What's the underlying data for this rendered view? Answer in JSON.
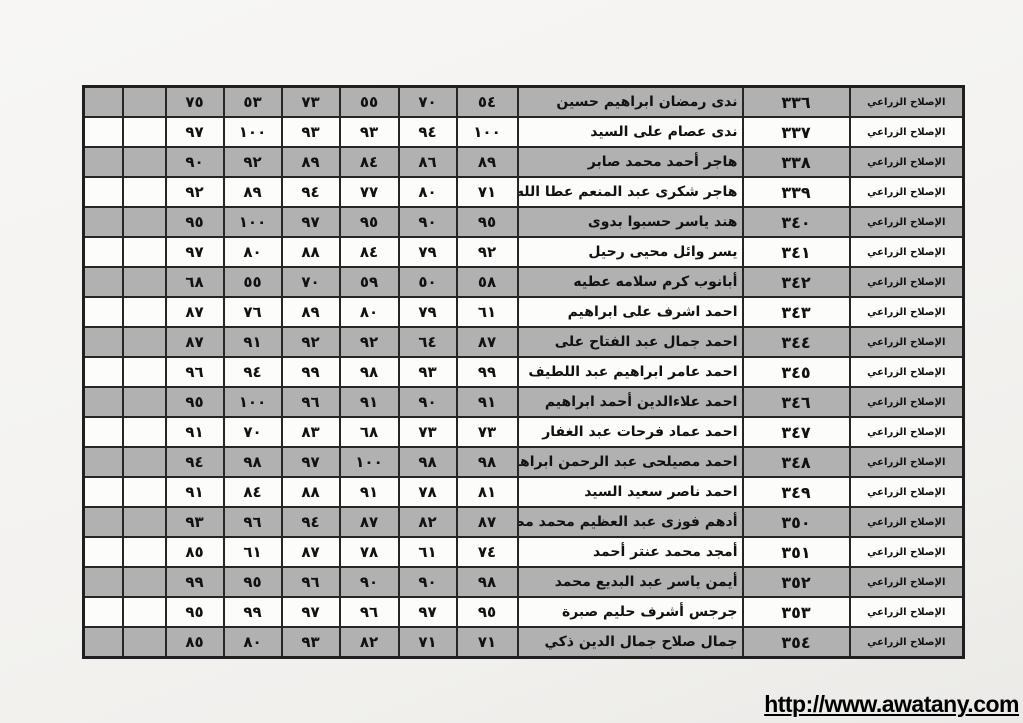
{
  "footer": {
    "url": "http://www.awatany.com"
  },
  "colors": {
    "row_gray": "#b1b1b1",
    "row_white": "#fcfcfb",
    "border": "#262626",
    "page_background": "#f3f2ef",
    "text": "#111111",
    "link": "#000000"
  },
  "table": {
    "direction": "rtl",
    "status_label": "الإصلاح الزراعي",
    "columns_rtl_order": [
      "school",
      "seat_number",
      "student_name",
      "grade1",
      "grade2",
      "grade3",
      "grade4",
      "grade5",
      "grade6",
      "empty1",
      "empty2"
    ],
    "rows": [
      {
        "seat": "٣٣٦",
        "seat_western": 336,
        "name": "ندى رمضان ابراهيم حسين",
        "grades": [
          "٥٤",
          "٧٠",
          "٥٥",
          "٧٣",
          "٥٣",
          "٧٥"
        ],
        "grades_western": [
          54,
          70,
          55,
          73,
          53,
          75
        ]
      },
      {
        "seat": "٣٣٧",
        "seat_western": 337,
        "name": "ندى عصام على السيد",
        "grades": [
          "١٠٠",
          "٩٤",
          "٩٣",
          "٩٣",
          "١٠٠",
          "٩٧"
        ],
        "grades_western": [
          100,
          94,
          93,
          93,
          100,
          97
        ]
      },
      {
        "seat": "٣٣٨",
        "seat_western": 338,
        "name": "هاجر أحمد محمد صابر",
        "grades": [
          "٨٩",
          "٨٦",
          "٨٤",
          "٨٩",
          "٩٢",
          "٩٠"
        ],
        "grades_western": [
          89,
          86,
          84,
          89,
          92,
          90
        ]
      },
      {
        "seat": "٣٣٩",
        "seat_western": 339,
        "name": "هاجر شكرى عبد المنعم عطا الله",
        "grades": [
          "٧١",
          "٨٠",
          "٧٧",
          "٩٤",
          "٨٩",
          "٩٢"
        ],
        "grades_western": [
          71,
          80,
          77,
          94,
          89,
          92
        ]
      },
      {
        "seat": "٣٤٠",
        "seat_western": 340,
        "name": "هند ياسر حسبوا بدوى",
        "grades": [
          "٩٥",
          "٩٠",
          "٩٥",
          "٩٧",
          "١٠٠",
          "٩٥"
        ],
        "grades_western": [
          95,
          90,
          95,
          97,
          100,
          95
        ]
      },
      {
        "seat": "٣٤١",
        "seat_western": 341,
        "name": "يسر وائل محيى رحيل",
        "grades": [
          "٩٢",
          "٧٩",
          "٨٤",
          "٨٨",
          "٨٠",
          "٩٧"
        ],
        "grades_western": [
          92,
          79,
          84,
          88,
          80,
          97
        ]
      },
      {
        "seat": "٣٤٢",
        "seat_western": 342,
        "name": "أبانوب كرم سلامه عطيه",
        "grades": [
          "٥٨",
          "٥٠",
          "٥٩",
          "٧٠",
          "٥٥",
          "٦٨"
        ],
        "grades_western": [
          58,
          50,
          59,
          70,
          55,
          68
        ]
      },
      {
        "seat": "٣٤٣",
        "seat_western": 343,
        "name": "احمد اشرف على ابراهيم",
        "grades": [
          "٦١",
          "٧٩",
          "٨٠",
          "٨٩",
          "٧٦",
          "٨٧"
        ],
        "grades_western": [
          61,
          79,
          80,
          89,
          76,
          87
        ]
      },
      {
        "seat": "٣٤٤",
        "seat_western": 344,
        "name": "احمد جمال عبد الفتاح على",
        "grades": [
          "٨٧",
          "٦٤",
          "٩٢",
          "٩٢",
          "٩١",
          "٨٧"
        ],
        "grades_western": [
          87,
          64,
          92,
          92,
          91,
          87
        ]
      },
      {
        "seat": "٣٤٥",
        "seat_western": 345,
        "name": "احمد عامر ابراهيم عبد اللطيف",
        "grades": [
          "٩٩",
          "٩٣",
          "٩٨",
          "٩٩",
          "٩٤",
          "٩٦"
        ],
        "grades_western": [
          99,
          93,
          98,
          99,
          94,
          96
        ]
      },
      {
        "seat": "٣٤٦",
        "seat_western": 346,
        "name": "احمد علاءالدين أحمد ابراهيم",
        "grades": [
          "٩١",
          "٩٠",
          "٩١",
          "٩٦",
          "١٠٠",
          "٩٥"
        ],
        "grades_western": [
          91,
          90,
          91,
          96,
          100,
          95
        ]
      },
      {
        "seat": "٣٤٧",
        "seat_western": 347,
        "name": "احمد عماد فرحات عبد الغفار",
        "grades": [
          "٧٣",
          "٧٣",
          "٦٨",
          "٨٣",
          "٧٠",
          "٩١"
        ],
        "grades_western": [
          73,
          73,
          68,
          83,
          70,
          91
        ]
      },
      {
        "seat": "٣٤٨",
        "seat_western": 348,
        "name": "احمد مصيلحى عبد الرحمن ابراهيم",
        "grades": [
          "٩٨",
          "٩٨",
          "١٠٠",
          "٩٧",
          "٩٨",
          "٩٤"
        ],
        "grades_western": [
          98,
          98,
          100,
          97,
          98,
          94
        ]
      },
      {
        "seat": "٣٤٩",
        "seat_western": 349,
        "name": "احمد ناصر سعيد السيد",
        "grades": [
          "٨١",
          "٧٨",
          "٩١",
          "٨٨",
          "٨٤",
          "٩١"
        ],
        "grades_western": [
          81,
          78,
          91,
          88,
          84,
          91
        ]
      },
      {
        "seat": "٣٥٠",
        "seat_western": 350,
        "name": "أدهم فوزى عبد العظيم محمد مصطفى",
        "grades": [
          "٨٧",
          "٨٢",
          "٨٧",
          "٩٤",
          "٩٦",
          "٩٣"
        ],
        "grades_western": [
          87,
          82,
          87,
          94,
          96,
          93
        ]
      },
      {
        "seat": "٣٥١",
        "seat_western": 351,
        "name": "أمجد محمد عنتر أحمد",
        "grades": [
          "٧٤",
          "٦١",
          "٧٨",
          "٨٧",
          "٦١",
          "٨٥"
        ],
        "grades_western": [
          74,
          61,
          78,
          87,
          61,
          85
        ]
      },
      {
        "seat": "٣٥٢",
        "seat_western": 352,
        "name": "أيمن ياسر عبد البديع محمد",
        "grades": [
          "٩٨",
          "٩٠",
          "٩٠",
          "٩٦",
          "٩٥",
          "٩٩"
        ],
        "grades_western": [
          98,
          90,
          90,
          96,
          95,
          99
        ]
      },
      {
        "seat": "٣٥٣",
        "seat_western": 353,
        "name": "جرجس أشرف حليم صبرة",
        "grades": [
          "٩٥",
          "٩٧",
          "٩٦",
          "٩٧",
          "٩٩",
          "٩٥"
        ],
        "grades_western": [
          95,
          97,
          96,
          97,
          99,
          95
        ]
      },
      {
        "seat": "٣٥٤",
        "seat_western": 354,
        "name": "جمال صلاح جمال الدين ذكي",
        "grades": [
          "٧١",
          "٧١",
          "٨٢",
          "٩٣",
          "٨٠",
          "٨٥"
        ],
        "grades_western": [
          71,
          71,
          82,
          93,
          80,
          85
        ]
      }
    ]
  }
}
